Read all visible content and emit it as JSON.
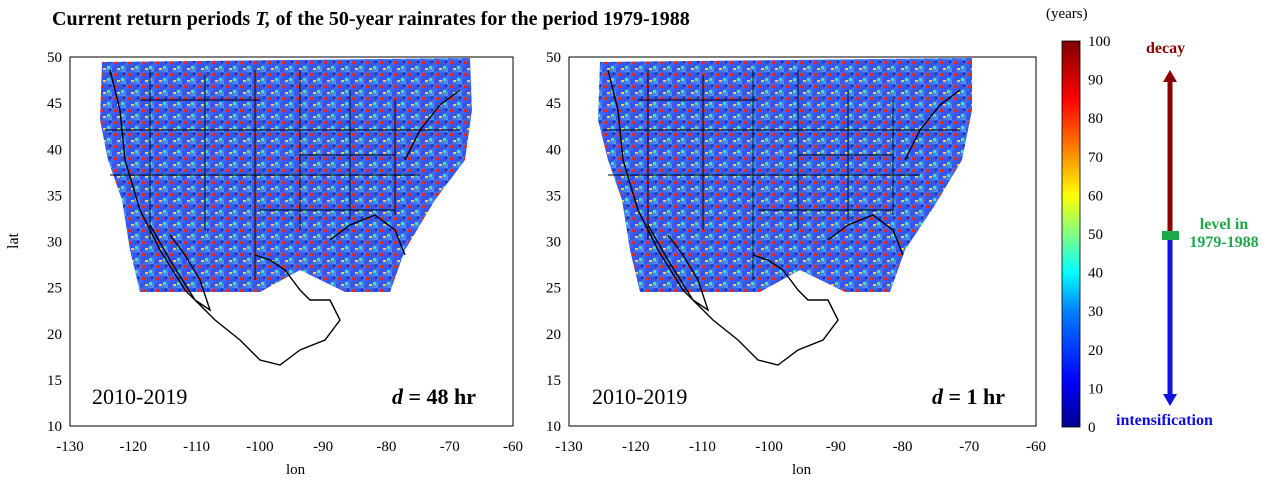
{
  "title": {
    "prefix": "Current return periods ",
    "italic": "T,",
    "suffix": " of the 50-year rainrates for the period 1979-1988"
  },
  "panels": [
    {
      "period": "2010-2019",
      "d_label": "d",
      "d_value": " = 48 hr"
    },
    {
      "period": "2010-2019",
      "d_label": "d",
      "d_value": " = 1 hr"
    }
  ],
  "axes": {
    "xlabel": "lon",
    "ylabel": "lat",
    "xticks": [
      "-130",
      "-120",
      "-110",
      "-100",
      "-90",
      "-80",
      "-70",
      "-60"
    ],
    "yticks": [
      "50",
      "45",
      "40",
      "35",
      "30",
      "25",
      "20",
      "15",
      "10"
    ]
  },
  "colorbar": {
    "unit": "(years)",
    "ticks": [
      "100",
      "90",
      "80",
      "70",
      "60",
      "50",
      "40",
      "30",
      "20",
      "10",
      "0"
    ],
    "colors": [
      "#00008f",
      "#0000ff",
      "#0080ff",
      "#00ffff",
      "#80ff80",
      "#ffff00",
      "#ff8000",
      "#ff0000",
      "#800000"
    ]
  },
  "annotations": {
    "top": "decay",
    "middle_line1": "level in",
    "middle_line2": "1979-1988",
    "bottom": "intensification",
    "top_color": "#8b0000",
    "middle_color": "#1ea84a",
    "bottom_color": "#1010e0"
  }
}
